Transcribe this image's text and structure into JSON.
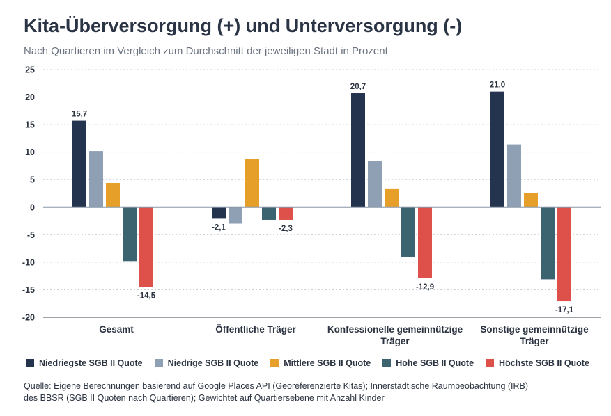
{
  "title": "Kita-Überversorgung (+) und Unterversorgung (-)",
  "subtitle": "Nach Quartieren im Vergleich zum Durchschnitt der jeweiligen Stadt in Prozent",
  "source_line1": "Quelle: Eigene Berechnungen basierend auf Google Places API (Georeferenzierte Kitas);  Innerstädtische Raumbeobachtung (IRB)",
  "source_line2": "des BBSR (SGB II Quoten nach Quartieren); Gewichtet auf Quartiersebene mit Anzahl Kinder",
  "chart_data": {
    "type": "bar",
    "categories": [
      [
        "Gesamt"
      ],
      [
        "Öffentliche Träger"
      ],
      [
        "Konfessionelle gemeinnützige",
        "Träger"
      ],
      [
        "Sonstige gemeinnützige",
        "Träger"
      ]
    ],
    "series": [
      {
        "name": "Niedriegste SGB II Quote",
        "color": "#24344f",
        "values": [
          15.7,
          -2.1,
          20.7,
          21.0
        ]
      },
      {
        "name": "Niedrige SGB II Quote",
        "color": "#8fa0b5",
        "values": [
          10.2,
          -3.0,
          8.4,
          11.4
        ]
      },
      {
        "name": "Mittlere SGB II Quote",
        "color": "#e6a02a",
        "values": [
          4.4,
          8.7,
          3.4,
          2.5
        ]
      },
      {
        "name": "Hohe SGB II Quote",
        "color": "#3b6470",
        "values": [
          -9.8,
          -2.3,
          -9.0,
          -13.1
        ]
      },
      {
        "name": "Höchste SGB II Quote",
        "color": "#dd514a",
        "values": [
          -14.5,
          -2.3,
          -12.9,
          -17.1
        ]
      }
    ],
    "data_labels": [
      {
        "category": 0,
        "series": 0,
        "text": "15,7"
      },
      {
        "category": 0,
        "series": 4,
        "text": "-14,5"
      },
      {
        "category": 1,
        "series": 0,
        "text": "-2,1"
      },
      {
        "category": 1,
        "series": 4,
        "text": "-2,3"
      },
      {
        "category": 2,
        "series": 0,
        "text": "20,7"
      },
      {
        "category": 2,
        "series": 4,
        "text": "-12,9"
      },
      {
        "category": 3,
        "series": 0,
        "text": "21,0"
      },
      {
        "category": 3,
        "series": 4,
        "text": "-17,1"
      }
    ],
    "yticks": [
      25,
      20,
      15,
      10,
      5,
      0,
      -5,
      -10,
      -15,
      -20
    ],
    "ylim": [
      -20,
      25
    ],
    "grid": true,
    "legend_position": "bottom"
  }
}
